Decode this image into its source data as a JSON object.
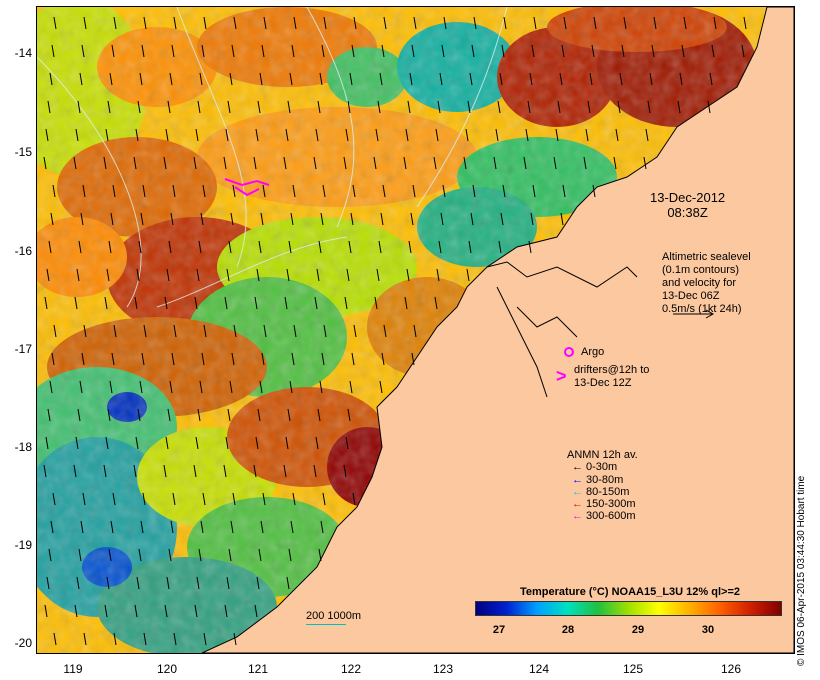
{
  "map": {
    "y_ticks": [
      "-14",
      "-15",
      "-16",
      "-17",
      "-18",
      "-19",
      "-20"
    ],
    "x_ticks": [
      "119",
      "120",
      "121",
      "122",
      "123",
      "124",
      "125",
      "126"
    ]
  },
  "annotations": {
    "date_line1": "13-Dec-2012",
    "date_line2": "08:38Z",
    "altimetric": [
      "Altimetric sealevel",
      "(0.1m contours)",
      "and velocity for",
      "13-Dec 06Z",
      "0.5m/s (1kt 24h)"
    ],
    "argo": "Argo",
    "drifters": [
      "drifters@12h to",
      "13-Dec 12Z"
    ]
  },
  "legend": {
    "title": "ANMN 12h av.",
    "items": [
      {
        "label": "0-30m",
        "color": "#000000"
      },
      {
        "label": "30-80m",
        "color": "#0000ff"
      },
      {
        "label": "80-150m",
        "color": "#00d0d0"
      },
      {
        "label": "150-300m",
        "color": "#ff0000"
      },
      {
        "label": "300-600m",
        "color": "#ff00ff"
      }
    ]
  },
  "colorbar": {
    "title": "Temperature (°C) NOAA15_L3U 12% ql>=2",
    "ticks": [
      "27",
      "28",
      "29",
      "30"
    ]
  },
  "scale": {
    "label": "200  1000m"
  },
  "credit": "© IMOS 06-Apr-2015 03:44:30 Hobart time",
  "colors": {
    "land": "#fbc8a0",
    "argo": "#ff00ff",
    "contour": "#d8f0f0"
  }
}
